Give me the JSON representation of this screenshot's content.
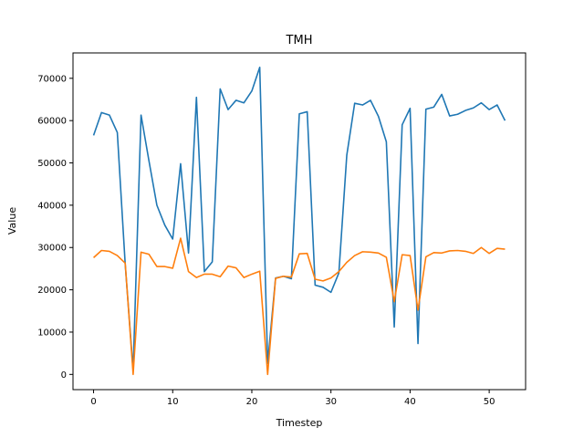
{
  "chart_data": {
    "type": "line",
    "title": "TMH",
    "xlabel": "Timestep",
    "ylabel": "Value",
    "xlim": [
      -2.6,
      54.6
    ],
    "ylim": [
      -3600,
      76000
    ],
    "xticks": [
      0,
      10,
      20,
      30,
      40,
      50
    ],
    "yticks": [
      0,
      10000,
      20000,
      30000,
      40000,
      50000,
      60000,
      70000
    ],
    "grid": false,
    "x": [
      0,
      1,
      2,
      3,
      4,
      5,
      6,
      7,
      8,
      9,
      10,
      11,
      12,
      13,
      14,
      15,
      16,
      17,
      18,
      19,
      20,
      21,
      22,
      23,
      24,
      25,
      26,
      27,
      28,
      29,
      30,
      31,
      32,
      33,
      34,
      35,
      36,
      37,
      38,
      39,
      40,
      41,
      42,
      43,
      44,
      45,
      46,
      47,
      48,
      49,
      50,
      51,
      52
    ],
    "series": [
      {
        "color": "#1f77b4",
        "values": [
          56500,
          61900,
          61300,
          57200,
          26000,
          1000,
          61300,
          50500,
          40000,
          35300,
          32000,
          49800,
          28700,
          65500,
          24300,
          26600,
          67500,
          62600,
          64800,
          64200,
          67000,
          72600,
          2600,
          22800,
          23200,
          22600,
          61600,
          62100,
          21100,
          20600,
          19400,
          24000,
          51800,
          64100,
          63700,
          64800,
          61000,
          55000,
          11200,
          59000,
          62900,
          7300,
          62700,
          63200,
          66200,
          61100,
          61500,
          62400,
          63000,
          64200,
          62600,
          63700,
          60000
        ]
      },
      {
        "color": "#ff7f0e",
        "values": [
          27600,
          29300,
          29100,
          28100,
          26300,
          0,
          28900,
          28400,
          25500,
          25500,
          25100,
          32200,
          24300,
          22900,
          23700,
          23700,
          23100,
          25600,
          25200,
          22900,
          23700,
          24400,
          0,
          22700,
          23200,
          23000,
          28500,
          28600,
          22500,
          22100,
          22800,
          24300,
          26500,
          28100,
          29000,
          28900,
          28700,
          27700,
          17200,
          28300,
          28100,
          15200,
          27800,
          28800,
          28700,
          29200,
          29300,
          29100,
          28600,
          30000,
          28600,
          29800,
          29600
        ]
      }
    ]
  }
}
